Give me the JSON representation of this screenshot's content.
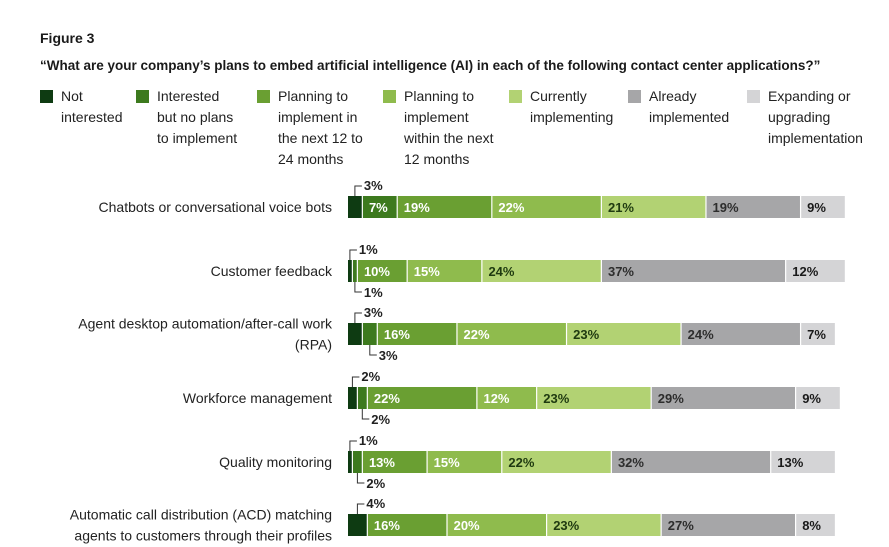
{
  "figure_label": "Figure 3",
  "question": "“What are your company’s plans to embed artificial intelligence (AI) in each of the following contact center applications?”",
  "legend": [
    {
      "label": "Not\ninterested",
      "color": "#0e3b12"
    },
    {
      "label": "Interested\nbut no plans\nto implement",
      "color": "#3d7a1e"
    },
    {
      "label": "Planning to\nimplement in\nthe next 12 to\n24 months",
      "color": "#6a9f32"
    },
    {
      "label": "Planning to\nimplement\nwithin the next\n12 months",
      "color": "#8fbb4d"
    },
    {
      "label": "Currently\nimplementing",
      "color": "#b2d273"
    },
    {
      "label": "Already\nimplemented",
      "color": "#a6a6a8"
    },
    {
      "label": "Expanding or\nupgrading\nimplementation",
      "color": "#d4d4d6"
    }
  ],
  "chart_data": {
    "type": "bar",
    "orientation": "horizontal",
    "stacked": true,
    "unit": "%",
    "categories": [
      "Chatbots or conversational voice bots",
      "Customer feedback",
      "Agent desktop automation/after-call work\n(RPA)",
      "Workforce management",
      "Quality monitoring",
      "Automatic call distribution (ACD) matching\nagents to customers through their profiles"
    ],
    "series": [
      {
        "name": "Not interested",
        "values": [
          3,
          1,
          3,
          2,
          1,
          4
        ]
      },
      {
        "name": "Interested but no plans to implement",
        "values": [
          7,
          1,
          3,
          2,
          2,
          0
        ]
      },
      {
        "name": "Planning to implement in the next 12 to 24 months",
        "values": [
          19,
          10,
          16,
          22,
          13,
          16
        ]
      },
      {
        "name": "Planning to implement within the next 12 months",
        "values": [
          22,
          15,
          22,
          12,
          15,
          20
        ]
      },
      {
        "name": "Currently implementing",
        "values": [
          21,
          24,
          23,
          23,
          22,
          23
        ]
      },
      {
        "name": "Already implemented",
        "values": [
          19,
          37,
          24,
          29,
          32,
          27
        ]
      },
      {
        "name": "Expanding or upgrading implementation",
        "values": [
          9,
          12,
          7,
          9,
          13,
          8
        ]
      }
    ],
    "value_labels": [
      [
        "3%",
        "7%",
        "19%",
        "22%",
        "21%",
        "19%",
        "9%"
      ],
      [
        "1%",
        "1%",
        "10%",
        "15%",
        "24%",
        "37%",
        "12%"
      ],
      [
        "3%",
        "3%",
        "16%",
        "22%",
        "23%",
        "24%",
        "7%"
      ],
      [
        "2%",
        "2%",
        "22%",
        "12%",
        "23%",
        "29%",
        "9%"
      ],
      [
        "1%",
        "2%",
        "13%",
        "15%",
        "22%",
        "32%",
        "13%"
      ],
      [
        "4%",
        "",
        "16%",
        "20%",
        "23%",
        "27%",
        "8%"
      ]
    ],
    "callouts": [
      {
        "top_segment": 0,
        "bottom_segment": null
      },
      {
        "top_segment": 0,
        "bottom_segment": 1
      },
      {
        "top_segment": 0,
        "bottom_segment": 1
      },
      {
        "top_segment": 0,
        "bottom_segment": 1
      },
      {
        "top_segment": 0,
        "bottom_segment": 1
      },
      {
        "top_segment": 0,
        "bottom_segment": null
      }
    ],
    "xlim": [
      0,
      100
    ],
    "grid": false,
    "legend_position": "top"
  }
}
